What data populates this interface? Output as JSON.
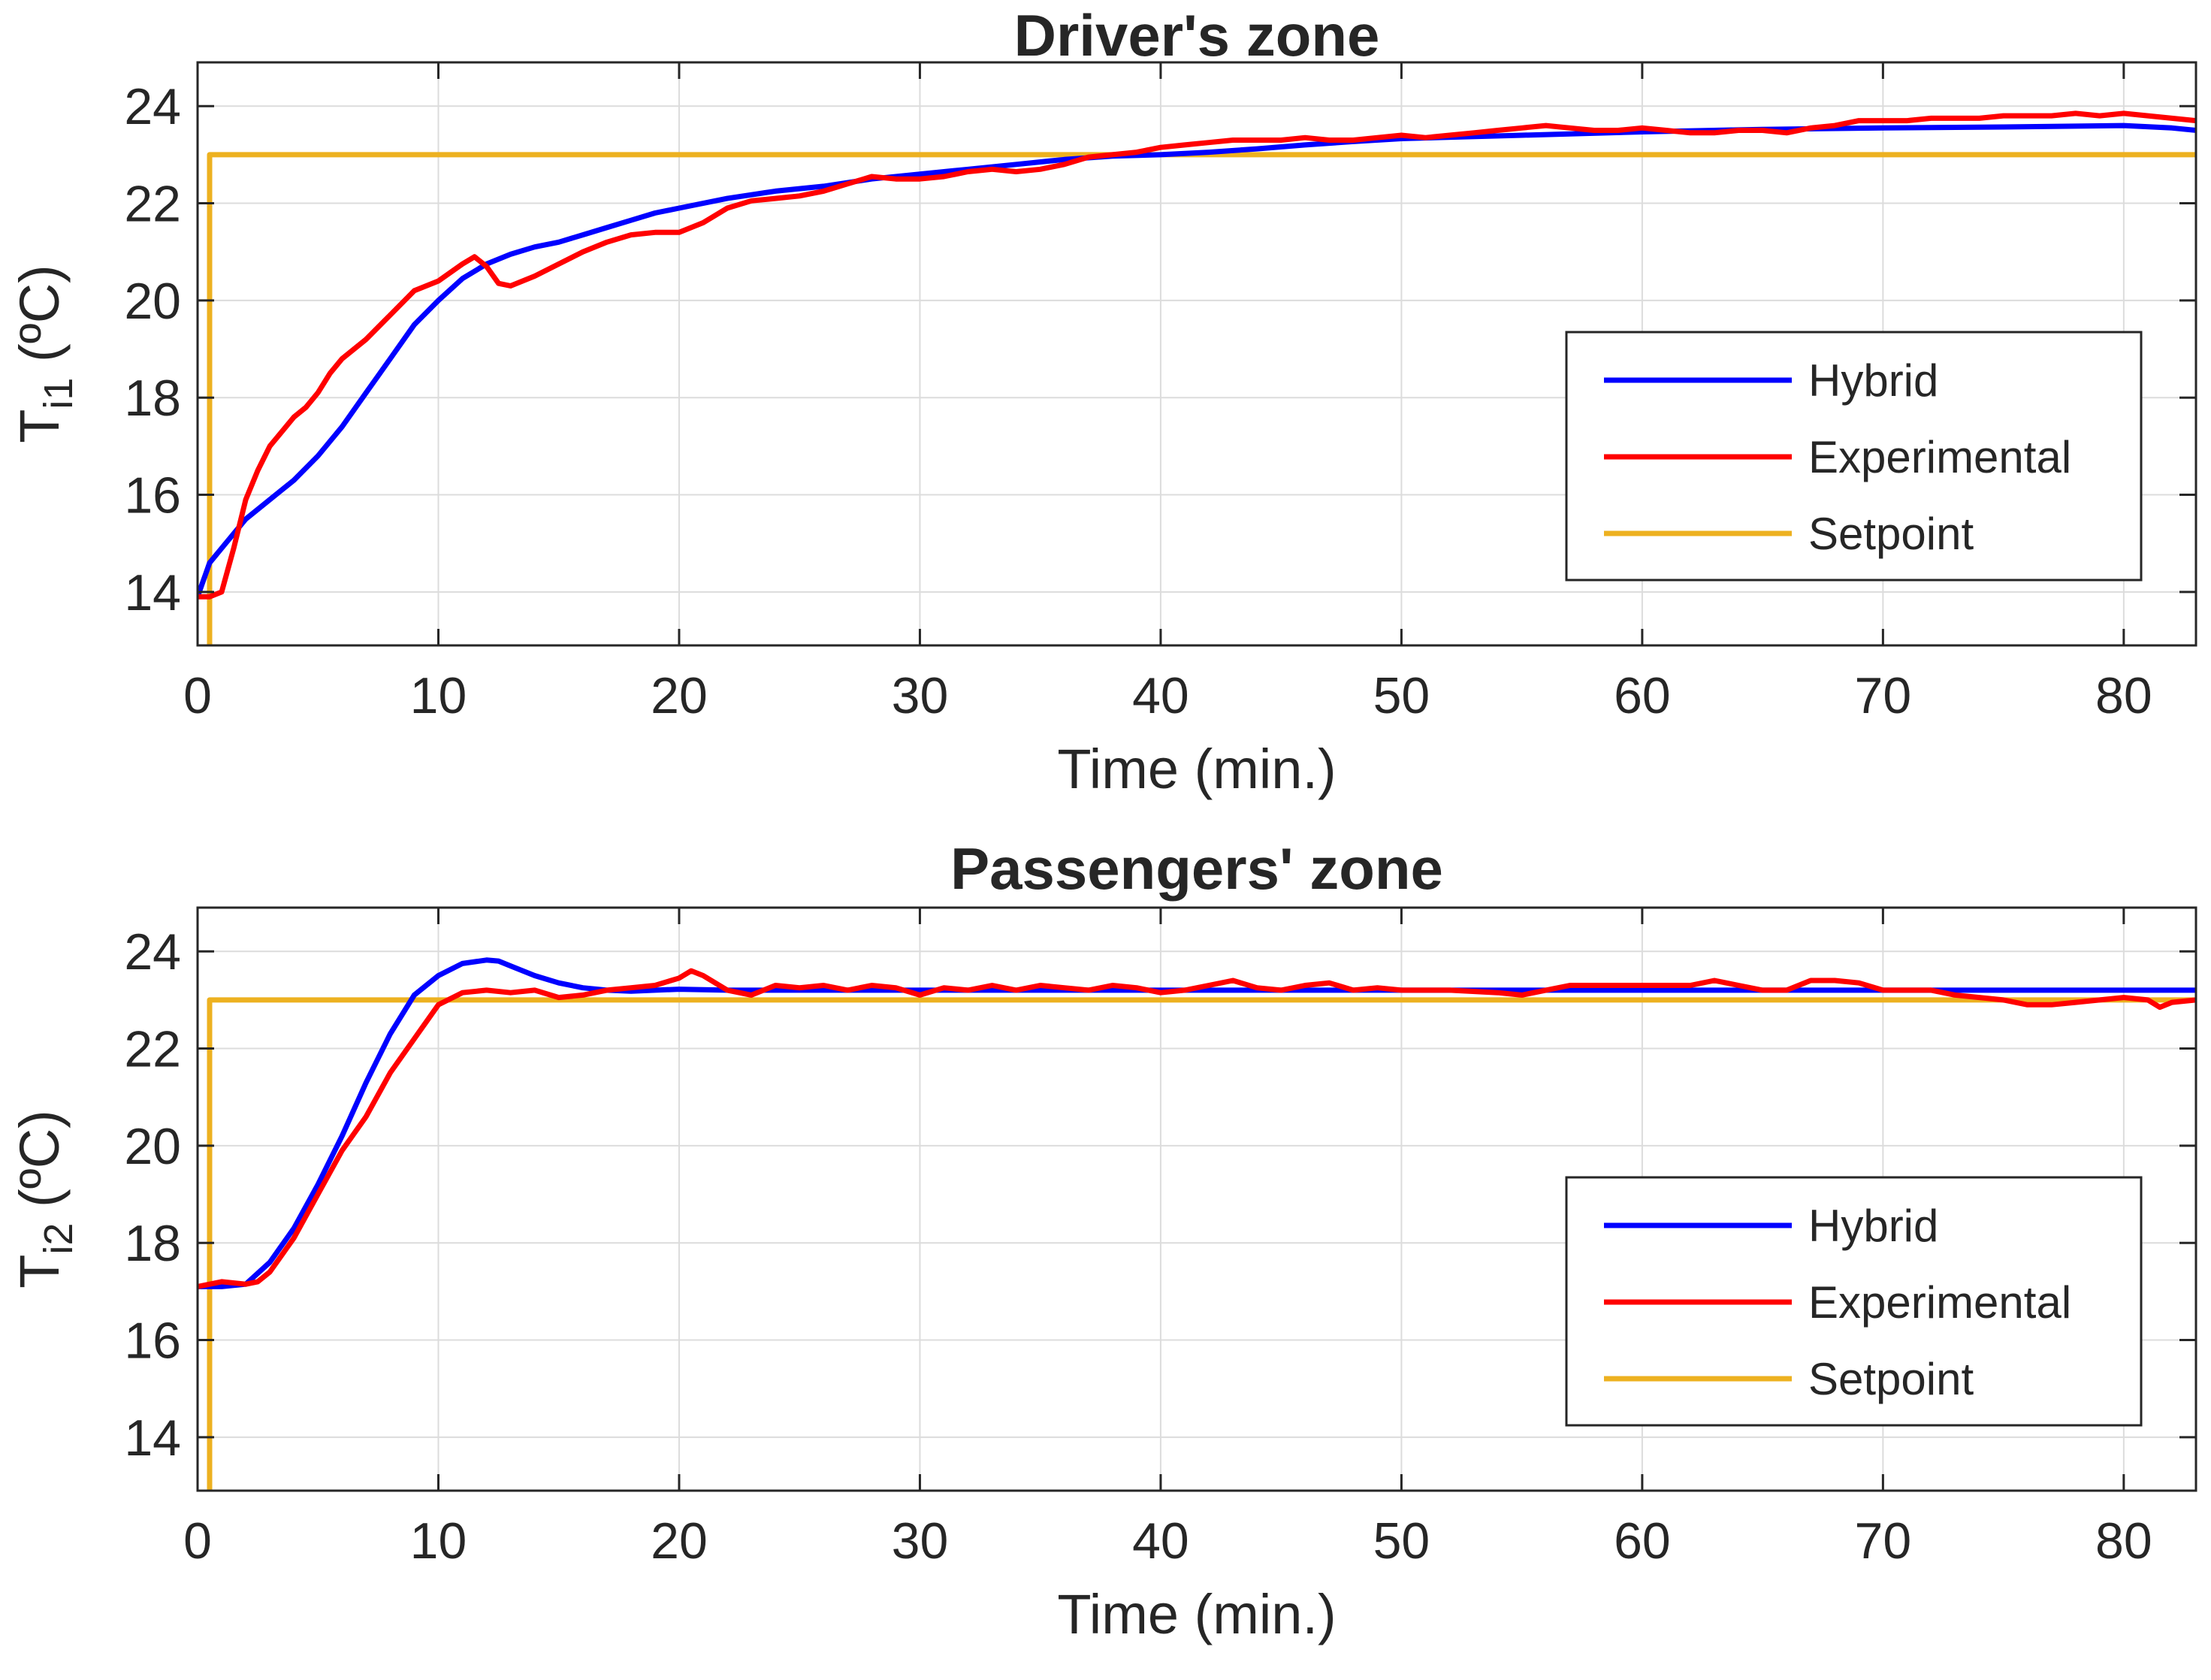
{
  "colors": {
    "hybrid": "#0000ff",
    "experimental": "#ff0000",
    "setpoint": "#edb120",
    "grid": "#dcdcdc",
    "axis": "#262626"
  },
  "chart_data": [
    {
      "type": "line",
      "title": "Driver's zone",
      "xlabel": "Time (min.)",
      "ylabel_main": "T",
      "ylabel_sub": "i1",
      "ylabel_suffix": " (ºC)",
      "xlim": [
        0,
        83
      ],
      "ylim": [
        12.9,
        24.9
      ],
      "xticks": [
        0,
        10,
        20,
        30,
        40,
        50,
        60,
        70,
        80
      ],
      "yticks": [
        14,
        16,
        18,
        20,
        22,
        24
      ],
      "grid": true,
      "legend": {
        "position": "right",
        "entries": [
          "Hybrid",
          "Experimental",
          "Setpoint"
        ]
      },
      "series": [
        {
          "name": "Hybrid",
          "color_key": "hybrid",
          "x": [
            0,
            0.5,
            1,
            2,
            3,
            4,
            5,
            6,
            7,
            8,
            9,
            10,
            11,
            12,
            13,
            14,
            15,
            16,
            17,
            18,
            19,
            20,
            22,
            24,
            26,
            28,
            30,
            32,
            34,
            36,
            38,
            40,
            42,
            44,
            46,
            48,
            50,
            55,
            60,
            65,
            70,
            75,
            80,
            82,
            83
          ],
          "y": [
            13.9,
            14.6,
            14.9,
            15.5,
            15.9,
            16.3,
            16.8,
            17.4,
            18.1,
            18.8,
            19.5,
            20.0,
            20.45,
            20.75,
            20.95,
            21.1,
            21.2,
            21.35,
            21.5,
            21.65,
            21.8,
            21.9,
            22.1,
            22.25,
            22.35,
            22.5,
            22.6,
            22.7,
            22.8,
            22.9,
            22.97,
            23.0,
            23.05,
            23.12,
            23.2,
            23.27,
            23.33,
            23.4,
            23.47,
            23.52,
            23.55,
            23.57,
            23.6,
            23.55,
            23.5
          ]
        },
        {
          "name": "Experimental",
          "color_key": "experimental",
          "x": [
            0,
            0.5,
            1,
            1.5,
            2,
            2.5,
            3,
            3.5,
            4,
            4.5,
            5,
            5.5,
            6,
            7,
            8,
            9,
            10,
            11,
            11.5,
            12,
            12.5,
            13,
            14,
            15,
            16,
            17,
            18,
            19,
            20,
            21,
            22,
            23,
            24,
            25,
            26,
            27,
            28,
            29,
            30,
            31,
            32,
            33,
            34,
            35,
            36,
            37,
            38,
            39,
            40,
            41,
            42,
            43,
            44,
            45,
            46,
            47,
            48,
            49,
            50,
            51,
            52,
            53,
            54,
            55,
            56,
            57,
            58,
            59,
            60,
            61,
            62,
            63,
            64,
            65,
            66,
            67,
            68,
            69,
            70,
            71,
            72,
            73,
            74,
            75,
            76,
            77,
            78,
            79,
            80,
            81,
            82,
            83
          ],
          "y": [
            13.9,
            13.9,
            14.0,
            14.9,
            15.9,
            16.5,
            17.0,
            17.3,
            17.6,
            17.8,
            18.1,
            18.5,
            18.8,
            19.2,
            19.7,
            20.2,
            20.4,
            20.75,
            20.9,
            20.7,
            20.35,
            20.3,
            20.5,
            20.75,
            21.0,
            21.2,
            21.35,
            21.4,
            21.4,
            21.6,
            21.9,
            22.05,
            22.1,
            22.15,
            22.25,
            22.4,
            22.55,
            22.5,
            22.5,
            22.55,
            22.65,
            22.7,
            22.65,
            22.7,
            22.8,
            22.95,
            23.0,
            23.05,
            23.15,
            23.2,
            23.25,
            23.3,
            23.3,
            23.3,
            23.35,
            23.3,
            23.3,
            23.35,
            23.4,
            23.35,
            23.4,
            23.45,
            23.5,
            23.55,
            23.6,
            23.55,
            23.5,
            23.5,
            23.55,
            23.5,
            23.45,
            23.45,
            23.5,
            23.5,
            23.45,
            23.55,
            23.6,
            23.7,
            23.7,
            23.7,
            23.75,
            23.75,
            23.75,
            23.8,
            23.8,
            23.8,
            23.85,
            23.8,
            23.85,
            23.8,
            23.75,
            23.7
          ]
        },
        {
          "name": "Setpoint",
          "color_key": "setpoint",
          "x": [
            0.5,
            0.5,
            83
          ],
          "y": [
            12.9,
            23.0,
            23.0
          ]
        }
      ]
    },
    {
      "type": "line",
      "title": "Passengers' zone",
      "xlabel": "Time (min.)",
      "ylabel_main": "T",
      "ylabel_sub": "i2",
      "ylabel_suffix": " (ºC)",
      "xlim": [
        0,
        83
      ],
      "ylim": [
        12.9,
        24.9
      ],
      "xticks": [
        0,
        10,
        20,
        30,
        40,
        50,
        60,
        70,
        80
      ],
      "yticks": [
        14,
        16,
        18,
        20,
        22,
        24
      ],
      "grid": true,
      "legend": {
        "position": "right",
        "entries": [
          "Hybrid",
          "Experimental",
          "Setpoint"
        ]
      },
      "series": [
        {
          "name": "Hybrid",
          "color_key": "hybrid",
          "x": [
            0,
            1,
            2,
            3,
            4,
            5,
            6,
            7,
            8,
            9,
            10,
            11,
            12,
            12.5,
            13,
            14,
            15,
            16,
            17,
            18,
            19,
            20,
            22,
            25,
            30,
            40,
            50,
            60,
            70,
            80,
            83
          ],
          "y": [
            17.1,
            17.1,
            17.15,
            17.6,
            18.3,
            19.2,
            20.2,
            21.3,
            22.3,
            23.1,
            23.5,
            23.75,
            23.82,
            23.8,
            23.7,
            23.5,
            23.35,
            23.25,
            23.2,
            23.18,
            23.2,
            23.22,
            23.2,
            23.2,
            23.2,
            23.2,
            23.2,
            23.2,
            23.2,
            23.2,
            23.2
          ]
        },
        {
          "name": "Experimental",
          "color_key": "experimental",
          "x": [
            0,
            1,
            2,
            2.5,
            3,
            4,
            5,
            6,
            7,
            8,
            9,
            10,
            11,
            12,
            13,
            14,
            15,
            16,
            17,
            18,
            19,
            20,
            20.5,
            21,
            22,
            23,
            24,
            25,
            26,
            27,
            28,
            29,
            30,
            31,
            32,
            33,
            34,
            35,
            36,
            37,
            38,
            39,
            40,
            41,
            42,
            43,
            44,
            45,
            46,
            47,
            48,
            49,
            50,
            52,
            54,
            55,
            56,
            57,
            58,
            60,
            62,
            63,
            64,
            65,
            66,
            67,
            68,
            69,
            70,
            72,
            73,
            74,
            75,
            76,
            77,
            78,
            79,
            80,
            81,
            81.5,
            82,
            83
          ],
          "y": [
            17.1,
            17.2,
            17.15,
            17.2,
            17.4,
            18.1,
            19.0,
            19.9,
            20.6,
            21.5,
            22.2,
            22.9,
            23.15,
            23.2,
            23.15,
            23.2,
            23.05,
            23.1,
            23.2,
            23.25,
            23.3,
            23.45,
            23.6,
            23.5,
            23.2,
            23.1,
            23.3,
            23.25,
            23.3,
            23.2,
            23.3,
            23.25,
            23.1,
            23.25,
            23.2,
            23.3,
            23.2,
            23.3,
            23.25,
            23.2,
            23.3,
            23.25,
            23.15,
            23.2,
            23.3,
            23.4,
            23.25,
            23.2,
            23.3,
            23.35,
            23.2,
            23.25,
            23.2,
            23.2,
            23.15,
            23.1,
            23.2,
            23.3,
            23.3,
            23.3,
            23.3,
            23.4,
            23.3,
            23.2,
            23.2,
            23.4,
            23.4,
            23.35,
            23.2,
            23.2,
            23.1,
            23.05,
            23.0,
            22.9,
            22.9,
            22.95,
            23.0,
            23.05,
            23.0,
            22.85,
            22.95,
            23.0
          ]
        },
        {
          "name": "Setpoint",
          "color_key": "setpoint",
          "x": [
            0.5,
            0.5,
            83
          ],
          "y": [
            12.9,
            23.0,
            23.0
          ]
        }
      ]
    }
  ]
}
